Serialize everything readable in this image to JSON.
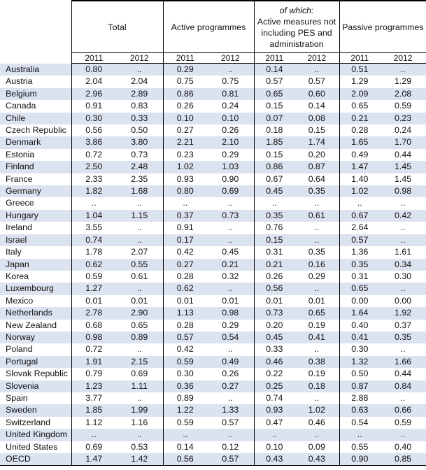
{
  "header": {
    "groups": {
      "total": "Total",
      "active": "Active programmes",
      "of_which_sub": "of which:",
      "of_which": "Active measures not including PES and administration",
      "passive": "Passive programmes"
    },
    "years": [
      "2011",
      "2012",
      "2011",
      "2012",
      "2011",
      "2012",
      "2011",
      "2012"
    ]
  },
  "rows": [
    {
      "country": "Australia",
      "values": [
        "0.80",
        "..",
        "0.29",
        "..",
        "0.14",
        "..",
        "0.51",
        ".."
      ]
    },
    {
      "country": "Austria",
      "values": [
        "2.04",
        "2.04",
        "0.75",
        "0.75",
        "0.57",
        "0.57",
        "1.29",
        "1.29"
      ]
    },
    {
      "country": "Belgium",
      "values": [
        "2.96",
        "2.89",
        "0.86",
        "0.81",
        "0.65",
        "0.60",
        "2.09",
        "2.08"
      ]
    },
    {
      "country": "Canada",
      "values": [
        "0.91",
        "0.83",
        "0.26",
        "0.24",
        "0.15",
        "0.14",
        "0.65",
        "0.59"
      ]
    },
    {
      "country": "Chile",
      "values": [
        "0.30",
        "0.33",
        "0.10",
        "0.10",
        "0.07",
        "0.08",
        "0.21",
        "0.23"
      ]
    },
    {
      "country": "Czech Republic",
      "values": [
        "0.56",
        "0.50",
        "0.27",
        "0.26",
        "0.18",
        "0.15",
        "0.28",
        "0.24"
      ]
    },
    {
      "country": "Denmark",
      "values": [
        "3.86",
        "3.80",
        "2.21",
        "2.10",
        "1.85",
        "1.74",
        "1.65",
        "1.70"
      ]
    },
    {
      "country": "Estonia",
      "values": [
        "0.72",
        "0.73",
        "0.23",
        "0.29",
        "0.15",
        "0.20",
        "0.49",
        "0.44"
      ]
    },
    {
      "country": "Finland",
      "values": [
        "2.50",
        "2.48",
        "1.02",
        "1.03",
        "0.86",
        "0.87",
        "1.47",
        "1.45"
      ]
    },
    {
      "country": "France",
      "values": [
        "2.33",
        "2.35",
        "0.93",
        "0.90",
        "0.67",
        "0.64",
        "1.40",
        "1.45"
      ]
    },
    {
      "country": "Germany",
      "values": [
        "1.82",
        "1.68",
        "0.80",
        "0.69",
        "0.45",
        "0.35",
        "1.02",
        "0.98"
      ]
    },
    {
      "country": "Greece",
      "values": [
        "..",
        "..",
        "..",
        "..",
        "..",
        "..",
        "..",
        ".."
      ]
    },
    {
      "country": "Hungary",
      "values": [
        "1.04",
        "1.15",
        "0.37",
        "0.73",
        "0.35",
        "0.61",
        "0.67",
        "0.42"
      ]
    },
    {
      "country": "Ireland",
      "values": [
        "3.55",
        "..",
        "0.91",
        "..",
        "0.76",
        "..",
        "2.64",
        ".."
      ]
    },
    {
      "country": "Israel",
      "values": [
        "0.74",
        "..",
        "0.17",
        "..",
        "0.15",
        "..",
        "0.57",
        ".."
      ]
    },
    {
      "country": "Italy",
      "values": [
        "1.78",
        "2.07",
        "0.42",
        "0.45",
        "0.31",
        "0.35",
        "1.36",
        "1.61"
      ]
    },
    {
      "country": "Japan",
      "values": [
        "0.62",
        "0.55",
        "0.27",
        "0.21",
        "0.21",
        "0.16",
        "0.35",
        "0.34"
      ]
    },
    {
      "country": "Korea",
      "values": [
        "0.59",
        "0.61",
        "0.28",
        "0.32",
        "0.26",
        "0.29",
        "0.31",
        "0.30"
      ]
    },
    {
      "country": "Luxembourg",
      "values": [
        "1.27",
        "..",
        "0.62",
        "..",
        "0.56",
        "..",
        "0.65",
        ".."
      ]
    },
    {
      "country": "Mexico",
      "values": [
        "0.01",
        "0.01",
        "0.01",
        "0.01",
        "0.01",
        "0.01",
        "0.00",
        "0.00"
      ]
    },
    {
      "country": "Netherlands",
      "values": [
        "2.78",
        "2.90",
        "1.13",
        "0.98",
        "0.73",
        "0.65",
        "1.64",
        "1.92"
      ]
    },
    {
      "country": "New Zealand",
      "values": [
        "0.68",
        "0.65",
        "0.28",
        "0.29",
        "0.20",
        "0.19",
        "0.40",
        "0.37"
      ]
    },
    {
      "country": "Norway",
      "values": [
        "0.98",
        "0.89",
        "0.57",
        "0.54",
        "0.45",
        "0.41",
        "0.41",
        "0.35"
      ]
    },
    {
      "country": "Poland",
      "values": [
        "0.72",
        "..",
        "0.42",
        "..",
        "0.33",
        "..",
        "0.30",
        ".."
      ]
    },
    {
      "country": "Portugal",
      "values": [
        "1.91",
        "2.15",
        "0.59",
        "0.49",
        "0.46",
        "0.38",
        "1.32",
        "1.66"
      ]
    },
    {
      "country": "Slovak Republic",
      "values": [
        "0.79",
        "0.69",
        "0.30",
        "0.26",
        "0.22",
        "0.19",
        "0.50",
        "0.44"
      ]
    },
    {
      "country": "Slovenia",
      "values": [
        "1.23",
        "1.11",
        "0.36",
        "0.27",
        "0.25",
        "0.18",
        "0.87",
        "0.84"
      ]
    },
    {
      "country": "Spain",
      "values": [
        "3.77",
        "..",
        "0.89",
        "..",
        "0.74",
        "..",
        "2.88",
        ".."
      ]
    },
    {
      "country": "Sweden",
      "values": [
        "1.85",
        "1.99",
        "1.22",
        "1.33",
        "0.93",
        "1.02",
        "0.63",
        "0.66"
      ]
    },
    {
      "country": "Switzerland",
      "values": [
        "1.12",
        "1.16",
        "0.59",
        "0.57",
        "0.47",
        "0.46",
        "0.54",
        "0.59"
      ]
    },
    {
      "country": "United Kingdom",
      "values": [
        "..",
        "..",
        "..",
        "..",
        "..",
        "..",
        "..",
        ".."
      ]
    },
    {
      "country": "United States",
      "values": [
        "0.69",
        "0.53",
        "0.14",
        "0.12",
        "0.10",
        "0.09",
        "0.55",
        "0.40"
      ]
    },
    {
      "country": "OECD",
      "values": [
        "1.47",
        "1.42",
        "0.56",
        "0.57",
        "0.43",
        "0.43",
        "0.90",
        "0.85"
      ]
    }
  ],
  "colors": {
    "row_shade": "#dbe2f0",
    "rule": "#000000"
  }
}
